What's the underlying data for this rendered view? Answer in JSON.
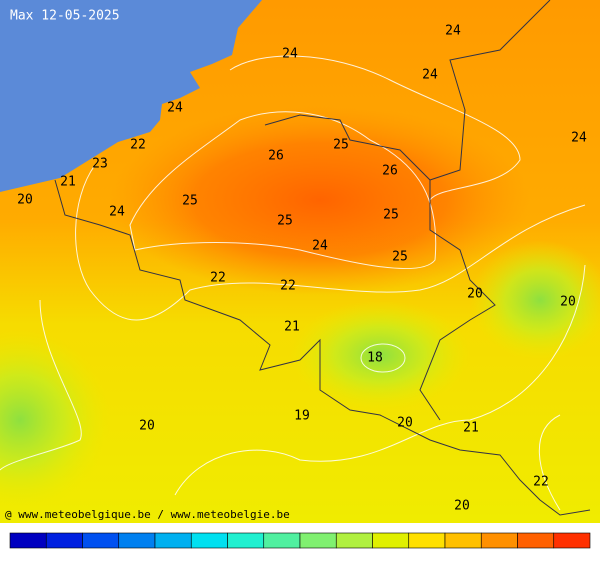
{
  "title": "Max 12-05-2025",
  "labels": [
    24,
    24,
    24,
    24,
    24,
    22,
    23,
    21,
    20,
    24,
    25,
    26,
    25,
    26,
    25,
    25,
    24,
    25,
    22,
    22,
    20,
    20,
    21,
    18,
    19,
    20,
    20,
    21,
    22,
    20
  ],
  "credit": "@ www.meteobelgique.be / www.meteobelgie.be"
}
